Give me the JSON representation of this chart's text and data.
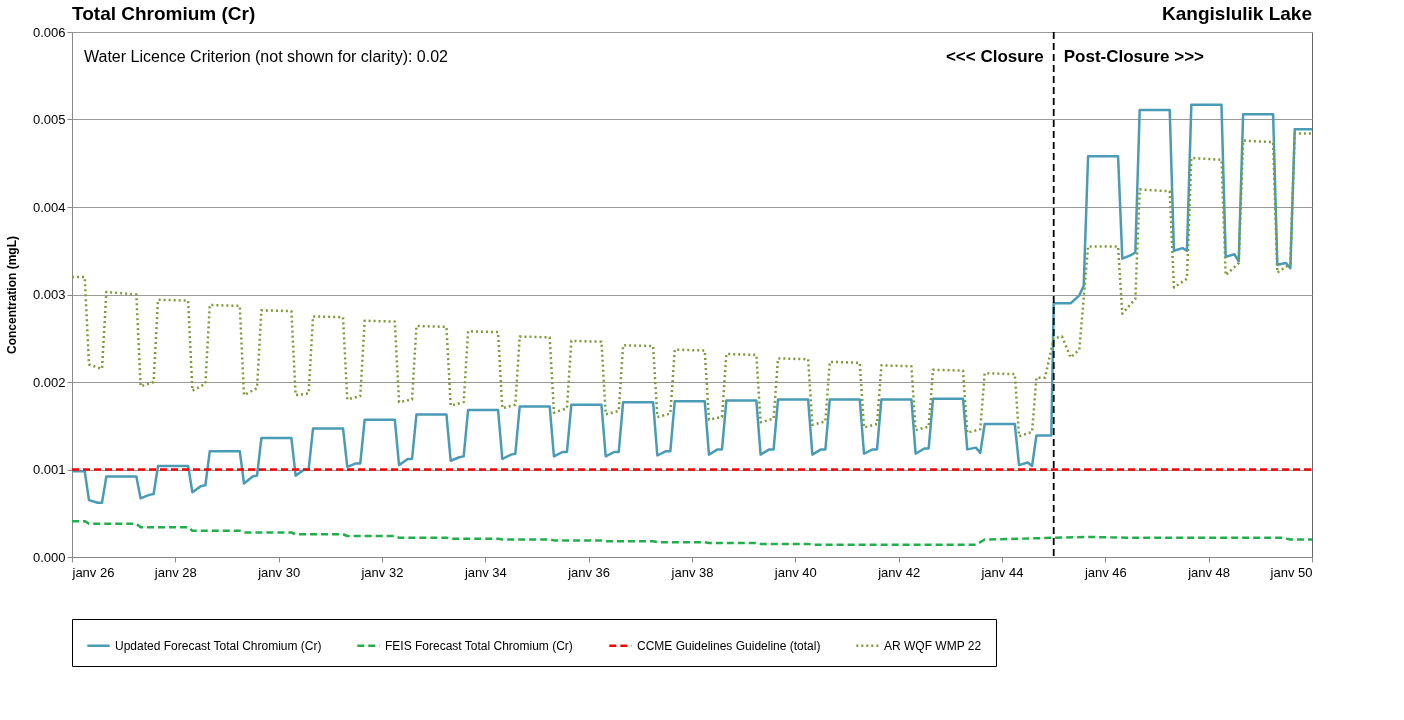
{
  "chart_data": {
    "type": "line",
    "title": "Total Chromium (Cr)",
    "subtitle": "Kangislulik Lake",
    "ylabel": "Concentration (mgL)",
    "xlim": [
      "2026-01",
      "2050-01"
    ],
    "xticks": [
      {
        "value": "2026-01",
        "label": "janv 26"
      },
      {
        "value": "2028-01",
        "label": "janv 28"
      },
      {
        "value": "2030-01",
        "label": "janv 30"
      },
      {
        "value": "2032-01",
        "label": "janv 32"
      },
      {
        "value": "2034-01",
        "label": "janv 34"
      },
      {
        "value": "2036-01",
        "label": "janv 36"
      },
      {
        "value": "2038-01",
        "label": "janv 38"
      },
      {
        "value": "2040-01",
        "label": "janv 40"
      },
      {
        "value": "2042-01",
        "label": "janv 42"
      },
      {
        "value": "2044-01",
        "label": "janv 44"
      },
      {
        "value": "2046-01",
        "label": "janv 46"
      },
      {
        "value": "2048-01",
        "label": "janv 48"
      },
      {
        "value": "2050-01",
        "label": "janv 50"
      }
    ],
    "ylim": [
      0,
      0.006
    ],
    "yticks": [
      {
        "value": 0,
        "label": "0.000"
      },
      {
        "value": 0.001,
        "label": "0.001"
      },
      {
        "value": 0.002,
        "label": "0.002"
      },
      {
        "value": 0.003,
        "label": "0.003"
      },
      {
        "value": 0.004,
        "label": "0.004"
      },
      {
        "value": 0.005,
        "label": "0.005"
      },
      {
        "value": 0.006,
        "label": "0.006"
      }
    ],
    "grid": "y",
    "legend": "bottom",
    "ref_lines": [
      {
        "axis": "x",
        "value": "2045-01",
        "color": "#000000",
        "line_style": "dashed"
      }
    ],
    "annotations": [
      "Water Licence Criterion (not shown for clarity): 0.02",
      "<<< Closure",
      "Post-Closure >>>"
    ],
    "series": [
      {
        "name": "Updated Forecast Total Chromium (Cr)",
        "color": "#4a9bb5",
        "line_style": "solid",
        "x": [
          "2026-01",
          "2026-04",
          "2026-05",
          "2026-07",
          "2026-08",
          "2026-09",
          "2027-04",
          "2027-05",
          "2027-07",
          "2027-08",
          "2027-09",
          "2028-04",
          "2028-05",
          "2028-07",
          "2028-08",
          "2028-09",
          "2029-04",
          "2029-05",
          "2029-07",
          "2029-08",
          "2029-09",
          "2030-04",
          "2030-05",
          "2030-07",
          "2030-08",
          "2030-09",
          "2031-04",
          "2031-05",
          "2031-07",
          "2031-08",
          "2031-09",
          "2032-04",
          "2032-05",
          "2032-07",
          "2032-08",
          "2032-09",
          "2033-04",
          "2033-05",
          "2033-07",
          "2033-08",
          "2033-09",
          "2034-04",
          "2034-05",
          "2034-07",
          "2034-08",
          "2034-09",
          "2035-04",
          "2035-05",
          "2035-07",
          "2035-08",
          "2035-09",
          "2036-04",
          "2036-05",
          "2036-07",
          "2036-08",
          "2036-09",
          "2037-04",
          "2037-05",
          "2037-07",
          "2037-08",
          "2037-09",
          "2038-04",
          "2038-05",
          "2038-07",
          "2038-08",
          "2038-09",
          "2039-04",
          "2039-05",
          "2039-07",
          "2039-08",
          "2039-09",
          "2040-04",
          "2040-05",
          "2040-07",
          "2040-08",
          "2040-09",
          "2041-04",
          "2041-05",
          "2041-07",
          "2041-08",
          "2041-09",
          "2042-04",
          "2042-05",
          "2042-07",
          "2042-08",
          "2042-09",
          "2043-04",
          "2043-05",
          "2043-07",
          "2043-08",
          "2043-09",
          "2044-04",
          "2044-05",
          "2044-07",
          "2044-08",
          "2044-09",
          "2044-12-15",
          "2045-01",
          "2045-05",
          "2045-07",
          "2045-08",
          "2045-09",
          "2046-04",
          "2046-05",
          "2046-07",
          "2046-08",
          "2046-09",
          "2047-04",
          "2047-05",
          "2047-07",
          "2047-08",
          "2047-09",
          "2048-04",
          "2048-05",
          "2048-07",
          "2048-08",
          "2048-09",
          "2049-04",
          "2049-05",
          "2049-07",
          "2049-08",
          "2049-09",
          "2050-01"
        ],
        "values": [
          0.00098,
          0.00098,
          0.00065,
          0.00062,
          0.00062,
          0.00092,
          0.00092,
          0.00067,
          0.00071,
          0.00072,
          0.00104,
          0.00104,
          0.00074,
          0.00081,
          0.00082,
          0.00121,
          0.00121,
          0.00084,
          0.00092,
          0.00093,
          0.00136,
          0.00136,
          0.00093,
          0.001,
          0.001,
          0.00147,
          0.00147,
          0.00103,
          0.00107,
          0.00107,
          0.00157,
          0.00157,
          0.00105,
          0.00112,
          0.00112,
          0.00163,
          0.00163,
          0.0011,
          0.00114,
          0.00115,
          0.00168,
          0.00168,
          0.00112,
          0.00117,
          0.00118,
          0.00172,
          0.00172,
          0.00115,
          0.0012,
          0.0012,
          0.00174,
          0.00174,
          0.00115,
          0.0012,
          0.0012,
          0.00177,
          0.00177,
          0.00116,
          0.00121,
          0.00121,
          0.00178,
          0.00178,
          0.00117,
          0.00123,
          0.00123,
          0.00179,
          0.00179,
          0.00117,
          0.00123,
          0.00123,
          0.0018,
          0.0018,
          0.00117,
          0.00123,
          0.00123,
          0.0018,
          0.0018,
          0.00118,
          0.00123,
          0.00123,
          0.0018,
          0.0018,
          0.00118,
          0.00124,
          0.00124,
          0.00181,
          0.00181,
          0.00123,
          0.00125,
          0.00119,
          0.00152,
          0.00152,
          0.00105,
          0.00108,
          0.00104,
          0.00139,
          0.00139,
          0.0029,
          0.0029,
          0.00299,
          0.0031,
          0.00458,
          0.00458,
          0.00341,
          0.00345,
          0.00348,
          0.00511,
          0.00511,
          0.0035,
          0.00353,
          0.0035,
          0.00517,
          0.00517,
          0.00343,
          0.00346,
          0.00338,
          0.00506,
          0.00506,
          0.00334,
          0.00336,
          0.0033,
          0.00489,
          0.00489
        ]
      },
      {
        "name": "FEIS Forecast Total Chromium (Cr)",
        "color": "#1fb04a",
        "line_style": "dashed",
        "x": [
          "2026-01",
          "2026-04",
          "2026-05",
          "2027-04",
          "2027-05",
          "2028-04",
          "2028-05",
          "2029-04",
          "2029-05",
          "2030-04",
          "2030-05",
          "2031-04",
          "2031-05",
          "2032-04",
          "2032-05",
          "2033-04",
          "2033-05",
          "2034-04",
          "2034-05",
          "2035-04",
          "2035-05",
          "2036-04",
          "2036-05",
          "2037-04",
          "2037-05",
          "2038-04",
          "2038-05",
          "2039-04",
          "2039-05",
          "2040-04",
          "2040-05",
          "2043-07",
          "2043-09",
          "2044-06",
          "2045-01",
          "2045-09",
          "2046-06",
          "2049-06",
          "2049-08",
          "2050-01"
        ],
        "values": [
          0.00041,
          0.00041,
          0.00038,
          0.00038,
          0.00034,
          0.00034,
          0.0003,
          0.0003,
          0.00028,
          0.00028,
          0.00026,
          0.00026,
          0.00024,
          0.00024,
          0.00022,
          0.00022,
          0.00021,
          0.00021,
          0.0002,
          0.0002,
          0.00019,
          0.00019,
          0.00018,
          0.00018,
          0.00017,
          0.00017,
          0.00016,
          0.00016,
          0.00015,
          0.00015,
          0.00014,
          0.00014,
          0.0002,
          0.00021,
          0.00022,
          0.00023,
          0.00022,
          0.00022,
          0.0002,
          0.0002
        ]
      },
      {
        "name": "CCME Guidelines Guideline (total)",
        "color": "#ff0000",
        "line_style": "dashed",
        "x": [
          "2026-01",
          "2050-01"
        ],
        "values": [
          0.001,
          0.001
        ]
      },
      {
        "name": "AR WQF WMP 22",
        "color": "#7f9a3a",
        "line_style": "dotted",
        "x": [
          "2026-01",
          "2026-04",
          "2026-05",
          "2026-08",
          "2026-09",
          "2027-04",
          "2027-05",
          "2027-08",
          "2027-09",
          "2028-04",
          "2028-05",
          "2028-08",
          "2028-09",
          "2029-04",
          "2029-05",
          "2029-08",
          "2029-09",
          "2030-04",
          "2030-05",
          "2030-08",
          "2030-09",
          "2031-04",
          "2031-05",
          "2031-08",
          "2031-09",
          "2032-04",
          "2032-05",
          "2032-08",
          "2032-09",
          "2033-04",
          "2033-05",
          "2033-08",
          "2033-09",
          "2034-04",
          "2034-05",
          "2034-08",
          "2034-09",
          "2035-04",
          "2035-05",
          "2035-08",
          "2035-09",
          "2036-04",
          "2036-05",
          "2036-08",
          "2036-09",
          "2037-04",
          "2037-05",
          "2037-08",
          "2037-09",
          "2038-04",
          "2038-05",
          "2038-08",
          "2038-09",
          "2039-04",
          "2039-05",
          "2039-08",
          "2039-09",
          "2040-04",
          "2040-05",
          "2040-08",
          "2040-09",
          "2041-04",
          "2041-05",
          "2041-08",
          "2041-09",
          "2042-04",
          "2042-05",
          "2042-08",
          "2042-09",
          "2043-04",
          "2043-05",
          "2043-08",
          "2043-09",
          "2044-04",
          "2044-05",
          "2044-08",
          "2044-09",
          "2044-11",
          "2045-01",
          "2045-03",
          "2045-05",
          "2045-07",
          "2045-09",
          "2046-04",
          "2046-05",
          "2046-08",
          "2046-09",
          "2047-04",
          "2047-05",
          "2047-08",
          "2047-09",
          "2048-04",
          "2048-05",
          "2048-08",
          "2048-09",
          "2049-04",
          "2049-05",
          "2049-08",
          "2049-09",
          "2050-01"
        ],
        "values": [
          0.0032,
          0.0032,
          0.0022,
          0.00215,
          0.00303,
          0.003,
          0.00195,
          0.002,
          0.00294,
          0.00293,
          0.0019,
          0.00198,
          0.00288,
          0.00287,
          0.00185,
          0.00193,
          0.00282,
          0.00281,
          0.00185,
          0.00187,
          0.00275,
          0.00274,
          0.0018,
          0.00184,
          0.0027,
          0.00269,
          0.00177,
          0.0018,
          0.00264,
          0.00263,
          0.00173,
          0.00177,
          0.00258,
          0.00257,
          0.0017,
          0.00174,
          0.00252,
          0.00251,
          0.00165,
          0.0017,
          0.00247,
          0.00246,
          0.00163,
          0.00167,
          0.00242,
          0.00241,
          0.0016,
          0.00164,
          0.00237,
          0.00236,
          0.00157,
          0.0016,
          0.00232,
          0.00231,
          0.00154,
          0.00158,
          0.00227,
          0.00226,
          0.00151,
          0.00155,
          0.00223,
          0.00222,
          0.00148,
          0.00152,
          0.00219,
          0.00218,
          0.00145,
          0.00149,
          0.00214,
          0.00213,
          0.00142,
          0.00146,
          0.0021,
          0.00209,
          0.00138,
          0.00143,
          0.00205,
          0.00205,
          0.0025,
          0.00252,
          0.00228,
          0.00237,
          0.00355,
          0.00355,
          0.00278,
          0.00295,
          0.0042,
          0.00418,
          0.00308,
          0.00318,
          0.00456,
          0.00454,
          0.00322,
          0.00336,
          0.00476,
          0.00474,
          0.00325,
          0.00335,
          0.00484,
          0.00484
        ]
      }
    ]
  }
}
